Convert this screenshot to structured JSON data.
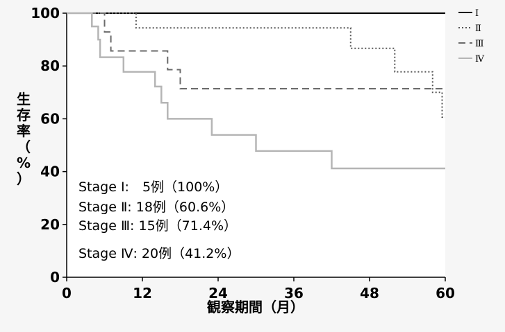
{
  "chart_data": {
    "type": "line",
    "step": true,
    "xlabel": "観察期間（月）",
    "ylabel": "生存率（%）",
    "xlim": [
      0,
      60
    ],
    "ylim": [
      0,
      100
    ],
    "xticks": [
      0,
      12,
      24,
      36,
      48,
      60
    ],
    "yticks": [
      0,
      20,
      40,
      60,
      80,
      100
    ],
    "grid": false,
    "legend_position": "right",
    "series": [
      {
        "name": "Ⅰ",
        "style": "solid",
        "color": "#000000",
        "points": [
          [
            0,
            100
          ],
          [
            60,
            100
          ]
        ]
      },
      {
        "name": "Ⅱ",
        "style": "dotted",
        "color": "#555555",
        "points": [
          [
            0,
            100
          ],
          [
            11,
            100
          ],
          [
            11,
            94.4
          ],
          [
            45,
            94.4
          ],
          [
            45,
            86.7
          ],
          [
            52,
            86.7
          ],
          [
            52,
            77.8
          ],
          [
            58,
            77.8
          ],
          [
            58,
            70
          ],
          [
            59.5,
            70
          ],
          [
            59.5,
            60.6
          ],
          [
            60,
            60.6
          ]
        ]
      },
      {
        "name": "Ⅲ",
        "style": "dashed",
        "color": "#6a6a6a",
        "points": [
          [
            0,
            100
          ],
          [
            6,
            100
          ],
          [
            6,
            92.9
          ],
          [
            7,
            92.9
          ],
          [
            7,
            85.7
          ],
          [
            16,
            85.7
          ],
          [
            16,
            78.6
          ],
          [
            18,
            78.6
          ],
          [
            18,
            71.4
          ],
          [
            60,
            71.4
          ]
        ]
      },
      {
        "name": "Ⅳ",
        "style": "solid",
        "color": "#b5b5b5",
        "points": [
          [
            0,
            100
          ],
          [
            4,
            100
          ],
          [
            4,
            95
          ],
          [
            5,
            95
          ],
          [
            5,
            90
          ],
          [
            5.3,
            90
          ],
          [
            5.3,
            83.3
          ],
          [
            9,
            83.3
          ],
          [
            9,
            77.8
          ],
          [
            14,
            77.8
          ],
          [
            14,
            72.2
          ],
          [
            15,
            72.2
          ],
          [
            15,
            66.1
          ],
          [
            16,
            66.1
          ],
          [
            16,
            60
          ],
          [
            23,
            60
          ],
          [
            23,
            53.9
          ],
          [
            30,
            53.9
          ],
          [
            30,
            47.8
          ],
          [
            42,
            47.8
          ],
          [
            42,
            41.2
          ],
          [
            60,
            41.2
          ]
        ]
      }
    ],
    "annotations": [
      "Stage Ⅰ:　5例（100%）",
      "Stage Ⅱ: 18例（60.6%）",
      "Stage Ⅲ: 15例（71.4%）",
      "Stage Ⅳ: 20例（41.2%）"
    ]
  }
}
